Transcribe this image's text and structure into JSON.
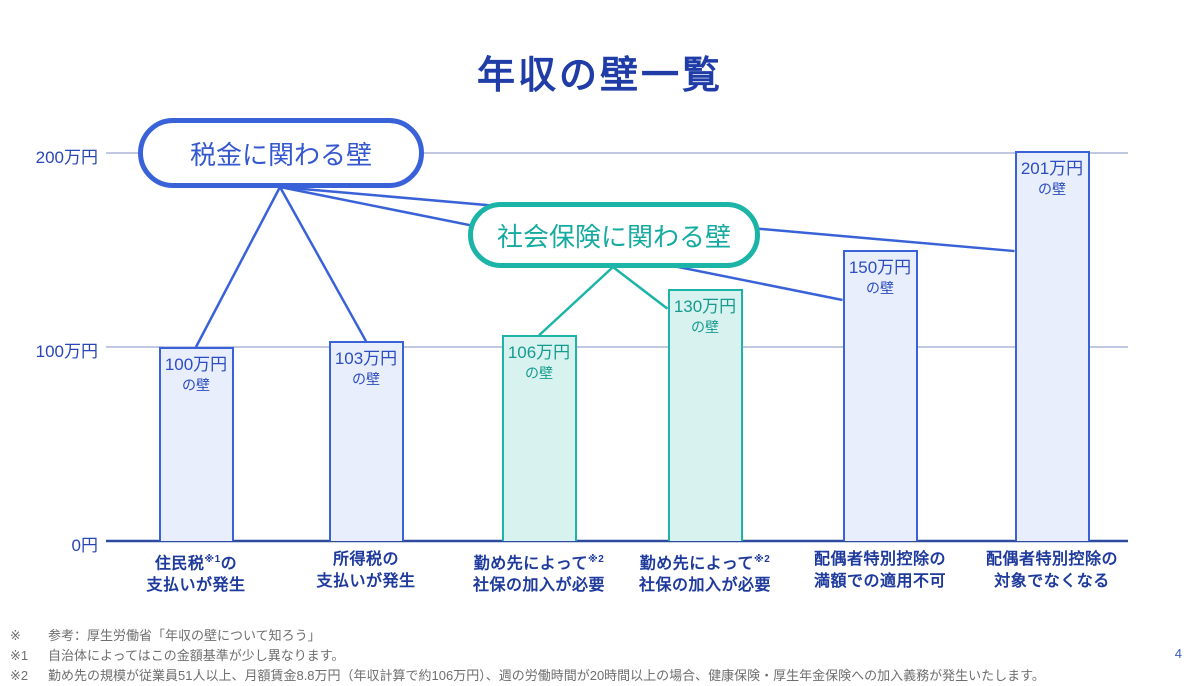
{
  "title": "年収の壁一覧",
  "page_number": "4",
  "callouts": {
    "tax": {
      "label": "税金に関わる壁",
      "color": "#3a62d8"
    },
    "insurance": {
      "label": "社会保険に関わる壁",
      "color": "#1db4a8"
    }
  },
  "chart_data": {
    "type": "bar",
    "title": "年収の壁一覧",
    "ylim": [
      0,
      215
    ],
    "grid": "horizontal",
    "yticks": [
      {
        "value": 0,
        "label": "0円"
      },
      {
        "value": 100,
        "label": "100万円"
      },
      {
        "value": 200,
        "label": "200万円"
      }
    ],
    "series_groups": [
      {
        "id": "tax",
        "label": "税金に関わる壁",
        "color": "#3a62d8",
        "fill": "#e8eefb",
        "text_color": "#2c4cc2"
      },
      {
        "id": "insurance",
        "label": "社会保険に関わる壁",
        "color": "#1db4a8",
        "fill": "#d8f2ef",
        "text_color": "#159a90"
      }
    ],
    "bars": [
      {
        "value": 100,
        "bar_label": [
          "100万円",
          "の壁"
        ],
        "group": "tax",
        "category": [
          "住民税※1の",
          "支払いが発生"
        ]
      },
      {
        "value": 103,
        "bar_label": [
          "103万円",
          "の壁"
        ],
        "group": "tax",
        "category": [
          "所得税の",
          "支払いが発生"
        ]
      },
      {
        "value": 106,
        "bar_label": [
          "106万円",
          "の壁"
        ],
        "group": "insurance",
        "category": [
          "勤め先によって※2",
          "社保の加入が必要"
        ]
      },
      {
        "value": 130,
        "bar_label": [
          "130万円",
          "の壁"
        ],
        "group": "insurance",
        "category": [
          "勤め先によって※2",
          "社保の加入が必要"
        ]
      },
      {
        "value": 150,
        "bar_label": [
          "150万円",
          "の壁"
        ],
        "group": "tax",
        "category": [
          "配偶者特別控除の",
          "満額での適用不可"
        ]
      },
      {
        "value": 201,
        "bar_label": [
          "201万円",
          "の壁"
        ],
        "group": "tax",
        "category": [
          "配偶者特別控除の",
          "対象でなくなる"
        ]
      }
    ]
  },
  "footnotes": [
    {
      "marker": "※",
      "text": "参考：厚生労働省「年収の壁について知ろう」"
    },
    {
      "marker": "※1",
      "text": "自治体によってはこの金額基準が少し異なります。"
    },
    {
      "marker": "※2",
      "text": "勤め先の規模が従業員51人以上、月額賃金8.8万円（年収計算で約106万円）、週の労働時間が20時間以上の場合、健康保険・厚生年金保険への加入義務が発生いたします。"
    }
  ]
}
